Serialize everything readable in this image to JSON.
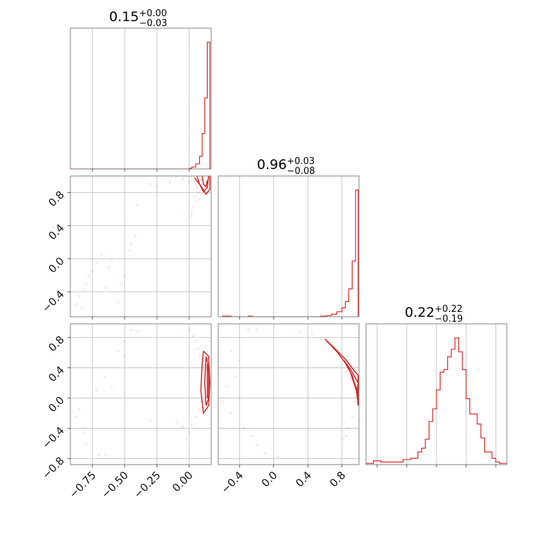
{
  "chart_data": {
    "type": "corner",
    "panels": [
      {
        "id": "hist-0",
        "type": "histogram",
        "title": {
          "value": "0.15",
          "plus": "+0.00",
          "minus": "−0.03"
        },
        "xlim": [
          -0.92,
          0.17
        ],
        "x_grid": [
          -0.75,
          -0.5,
          -0.25,
          0.0
        ],
        "bins": [
          {
            "x0": -0.92,
            "x1": 0.0,
            "value": 0.0
          },
          {
            "x0": 0.0,
            "x1": 0.02,
            "value": 0.005
          },
          {
            "x0": 0.02,
            "x1": 0.05,
            "value": 0.015
          },
          {
            "x0": 0.05,
            "x1": 0.08,
            "value": 0.04
          },
          {
            "x0": 0.08,
            "x1": 0.1,
            "value": 0.1
          },
          {
            "x0": 0.1,
            "x1": 0.12,
            "value": 0.28
          },
          {
            "x0": 0.12,
            "x1": 0.14,
            "value": 0.56
          },
          {
            "x0": 0.14,
            "x1": 0.16,
            "value": 1.0
          },
          {
            "x0": 0.16,
            "x1": 0.17,
            "value": 0.0
          }
        ]
      },
      {
        "id": "hist-1",
        "type": "histogram",
        "title": {
          "value": "0.96",
          "plus": "+0.03",
          "minus": "−0.08"
        },
        "xlim": [
          -0.65,
          1.0
        ],
        "x_grid": [
          -0.4,
          0.0,
          0.4,
          0.8
        ],
        "bins": [
          {
            "x0": -0.6,
            "x1": -0.5,
            "value": 0.005
          },
          {
            "x0": -0.5,
            "x1": -0.3,
            "value": 0.0
          },
          {
            "x0": -0.3,
            "x1": -0.25,
            "value": 0.005
          },
          {
            "x0": -0.25,
            "x1": 0.55,
            "value": 0.0
          },
          {
            "x0": 0.55,
            "x1": 0.62,
            "value": 0.005
          },
          {
            "x0": 0.62,
            "x1": 0.68,
            "value": 0.01
          },
          {
            "x0": 0.68,
            "x1": 0.74,
            "value": 0.02
          },
          {
            "x0": 0.74,
            "x1": 0.8,
            "value": 0.04
          },
          {
            "x0": 0.8,
            "x1": 0.84,
            "value": 0.07
          },
          {
            "x0": 0.84,
            "x1": 0.88,
            "value": 0.12
          },
          {
            "x0": 0.88,
            "x1": 0.92,
            "value": 0.22
          },
          {
            "x0": 0.92,
            "x1": 0.96,
            "value": 0.44
          },
          {
            "x0": 0.96,
            "x1": 0.99,
            "value": 1.0
          },
          {
            "x0": 0.99,
            "x1": 1.0,
            "value": 0.0
          }
        ]
      },
      {
        "id": "hist-2",
        "type": "histogram",
        "title": {
          "value": "0.22",
          "plus": "+0.22",
          "minus": "−0.19"
        },
        "xlim": [
          -0.95,
          0.95
        ],
        "x_grid": [
          -0.8,
          -0.4,
          0.0,
          0.4,
          0.8
        ],
        "bins": [
          {
            "x0": -0.95,
            "x1": -0.85,
            "value": 0.01
          },
          {
            "x0": -0.85,
            "x1": -0.75,
            "value": 0.03
          },
          {
            "x0": -0.75,
            "x1": -0.45,
            "value": 0.02
          },
          {
            "x0": -0.45,
            "x1": -0.35,
            "value": 0.04
          },
          {
            "x0": -0.35,
            "x1": -0.25,
            "value": 0.05
          },
          {
            "x0": -0.25,
            "x1": -0.2,
            "value": 0.1
          },
          {
            "x0": -0.2,
            "x1": -0.15,
            "value": 0.13
          },
          {
            "x0": -0.15,
            "x1": -0.1,
            "value": 0.2
          },
          {
            "x0": -0.1,
            "x1": -0.05,
            "value": 0.34
          },
          {
            "x0": -0.05,
            "x1": 0.0,
            "value": 0.44
          },
          {
            "x0": 0.0,
            "x1": 0.05,
            "value": 0.59
          },
          {
            "x0": 0.05,
            "x1": 0.1,
            "value": 0.73
          },
          {
            "x0": 0.1,
            "x1": 0.15,
            "value": 0.75
          },
          {
            "x0": 0.15,
            "x1": 0.2,
            "value": 0.85
          },
          {
            "x0": 0.2,
            "x1": 0.25,
            "value": 0.91
          },
          {
            "x0": 0.25,
            "x1": 0.3,
            "value": 1.0
          },
          {
            "x0": 0.3,
            "x1": 0.35,
            "value": 0.89
          },
          {
            "x0": 0.35,
            "x1": 0.4,
            "value": 0.75
          },
          {
            "x0": 0.4,
            "x1": 0.45,
            "value": 0.52
          },
          {
            "x0": 0.45,
            "x1": 0.5,
            "value": 0.4
          },
          {
            "x0": 0.5,
            "x1": 0.55,
            "value": 0.4
          },
          {
            "x0": 0.55,
            "x1": 0.6,
            "value": 0.32
          },
          {
            "x0": 0.6,
            "x1": 0.65,
            "value": 0.21
          },
          {
            "x0": 0.65,
            "x1": 0.7,
            "value": 0.1
          },
          {
            "x0": 0.7,
            "x1": 0.75,
            "value": 0.1
          },
          {
            "x0": 0.75,
            "x1": 0.8,
            "value": 0.05
          },
          {
            "x0": 0.8,
            "x1": 0.85,
            "value": 0.02
          },
          {
            "x0": 0.85,
            "x1": 0.95,
            "value": 0.01
          }
        ]
      },
      {
        "id": "scatter-1-0",
        "type": "scatter-contour",
        "xlim": [
          -0.92,
          0.17
        ],
        "ylim": [
          -0.7,
          1.0
        ],
        "x_grid": [
          -0.75,
          -0.5,
          -0.25,
          0.0
        ],
        "y_grid": [
          -0.4,
          0.0,
          0.4,
          0.8
        ],
        "yticks": [
          "−0.4",
          "0.0",
          "0.4",
          "0.8"
        ],
        "points": [
          [
            -0.1,
            0.99
          ],
          [
            -0.05,
            0.96
          ],
          [
            0.0,
            0.93
          ],
          [
            0.02,
            0.98
          ],
          [
            0.05,
            0.9
          ],
          [
            0.06,
            0.85
          ],
          [
            0.07,
            0.8
          ],
          [
            0.04,
            0.75
          ],
          [
            0.06,
            0.7
          ],
          [
            0.03,
            0.62
          ],
          [
            0.02,
            0.55
          ],
          [
            0.01,
            0.52
          ],
          [
            -0.15,
            0.92
          ],
          [
            -0.3,
            0.9
          ],
          [
            -0.4,
            0.65
          ],
          [
            -0.42,
            0.27
          ],
          [
            -0.45,
            0.18
          ],
          [
            -0.46,
            0.1
          ],
          [
            -0.5,
            -0.2
          ],
          [
            -0.52,
            -0.3
          ],
          [
            -0.6,
            0.0
          ],
          [
            -0.62,
            -0.1
          ],
          [
            -0.65,
            -0.35
          ],
          [
            -0.68,
            0.05
          ],
          [
            -0.72,
            -0.05
          ],
          [
            -0.75,
            -0.15
          ],
          [
            -0.78,
            -0.2
          ],
          [
            -0.8,
            -0.3
          ],
          [
            -0.82,
            -0.38
          ],
          [
            -0.85,
            -0.45
          ],
          [
            -0.87,
            -0.55
          ],
          [
            -0.83,
            -0.6
          ],
          [
            -0.25,
            0.87
          ],
          [
            0.08,
            0.72
          ],
          [
            0.09,
            0.95
          ],
          [
            0.11,
            0.88
          ],
          [
            -0.55,
            -0.52
          ]
        ],
        "contours": [
          [
            [
              0.06,
              1.0
            ],
            [
              0.08,
              0.9
            ],
            [
              0.11,
              0.81
            ],
            [
              0.14,
              0.86
            ],
            [
              0.15,
              1.0
            ]
          ],
          [
            [
              0.1,
              1.0
            ],
            [
              0.11,
              0.9
            ],
            [
              0.13,
              0.87
            ],
            [
              0.14,
              0.95
            ]
          ],
          [
            [
              0.04,
              0.98
            ],
            [
              0.09,
              0.88
            ],
            [
              0.13,
              0.78
            ],
            [
              0.16,
              0.84
            ],
            [
              0.16,
              1.0
            ]
          ]
        ]
      },
      {
        "id": "scatter-2-0",
        "type": "scatter-contour",
        "xlim": [
          -0.92,
          0.17
        ],
        "ylim": [
          -0.88,
          0.98
        ],
        "x_grid": [
          -0.75,
          -0.5,
          -0.25,
          0.0
        ],
        "y_grid": [
          -0.8,
          -0.4,
          0.0,
          0.4,
          0.8
        ],
        "xticks": [
          "−0.75",
          "−0.50",
          "−0.25",
          "0.00"
        ],
        "yticks": [
          "−0.8",
          "−0.4",
          "0.0",
          "0.4",
          "0.8"
        ],
        "points": [
          [
            0.0,
            0.9
          ],
          [
            0.03,
            0.82
          ],
          [
            0.05,
            0.75
          ],
          [
            0.07,
            0.65
          ],
          [
            0.08,
            0.55
          ],
          [
            0.1,
            -0.05
          ],
          [
            0.08,
            -0.15
          ],
          [
            0.05,
            -0.25
          ],
          [
            0.02,
            -0.35
          ],
          [
            0.0,
            -0.45
          ],
          [
            -0.02,
            -0.55
          ],
          [
            -0.05,
            -0.38
          ],
          [
            -0.1,
            -0.32
          ],
          [
            -0.45,
            0.9
          ],
          [
            -0.4,
            0.88
          ],
          [
            -0.5,
            0.75
          ],
          [
            -0.55,
            0.62
          ],
          [
            -0.5,
            0.55
          ],
          [
            -0.6,
            0.15
          ],
          [
            -0.65,
            0.28
          ],
          [
            -0.72,
            0.1
          ],
          [
            -0.85,
            -0.15
          ],
          [
            -0.88,
            -0.25
          ],
          [
            -0.82,
            -0.45
          ],
          [
            -0.8,
            -0.6
          ],
          [
            -0.7,
            -0.75
          ],
          [
            -0.65,
            -0.75
          ],
          [
            -0.3,
            -0.3
          ]
        ],
        "contours": [
          [
            [
              0.11,
              0.62
            ],
            [
              0.15,
              0.55
            ],
            [
              0.16,
              0.2
            ],
            [
              0.15,
              -0.1
            ],
            [
              0.11,
              -0.2
            ],
            [
              0.09,
              0.1
            ],
            [
              0.1,
              0.45
            ],
            [
              0.11,
              0.62
            ]
          ],
          [
            [
              0.13,
              0.55
            ],
            [
              0.15,
              0.4
            ],
            [
              0.15,
              0.0
            ],
            [
              0.13,
              -0.1
            ],
            [
              0.12,
              0.2
            ],
            [
              0.13,
              0.55
            ]
          ],
          [
            [
              0.14,
              0.45
            ],
            [
              0.155,
              0.3
            ],
            [
              0.155,
              0.05
            ],
            [
              0.14,
              0.0
            ],
            [
              0.14,
              0.45
            ]
          ]
        ]
      },
      {
        "id": "scatter-2-1",
        "type": "scatter-contour",
        "xlim": [
          -0.65,
          1.0
        ],
        "ylim": [
          -0.88,
          0.98
        ],
        "x_grid": [
          -0.4,
          0.0,
          0.4,
          0.8
        ],
        "y_grid": [
          -0.8,
          -0.4,
          0.0,
          0.4,
          0.8
        ],
        "xticks": [
          "−0.4",
          "0.0",
          "0.4",
          "0.8"
        ],
        "points": [
          [
            -0.3,
            0.9
          ],
          [
            -0.2,
            0.9
          ],
          [
            0.3,
            0.88
          ],
          [
            0.45,
            0.85
          ],
          [
            0.55,
            0.78
          ],
          [
            0.62,
            0.73
          ],
          [
            0.7,
            0.65
          ],
          [
            0.76,
            0.58
          ],
          [
            0.85,
            0.35
          ],
          [
            0.9,
            0.25
          ],
          [
            0.95,
            -0.05
          ],
          [
            0.92,
            -0.25
          ],
          [
            0.88,
            -0.4
          ],
          [
            0.85,
            -0.5
          ],
          [
            0.82,
            -0.55
          ],
          [
            -0.5,
            0.62
          ],
          [
            -0.4,
            0.5
          ],
          [
            -0.55,
            0.15
          ],
          [
            -0.6,
            -0.05
          ],
          [
            -0.5,
            -0.2
          ],
          [
            -0.35,
            -0.4
          ],
          [
            -0.25,
            -0.5
          ],
          [
            -0.2,
            -0.62
          ],
          [
            -0.1,
            -0.73
          ],
          [
            0.05,
            -0.78
          ],
          [
            -0.45,
            0.28
          ]
        ],
        "contours": [
          [
            [
              0.6,
              0.78
            ],
            [
              0.75,
              0.6
            ],
            [
              0.88,
              0.4
            ],
            [
              0.97,
              0.1
            ],
            [
              0.99,
              -0.1
            ],
            [
              0.99,
              0.3
            ],
            [
              0.95,
              0.35
            ],
            [
              0.85,
              0.5
            ],
            [
              0.72,
              0.65
            ],
            [
              0.6,
              0.78
            ]
          ],
          [
            [
              0.82,
              0.5
            ],
            [
              0.92,
              0.3
            ],
            [
              0.98,
              0.05
            ],
            [
              0.99,
              0.2
            ],
            [
              0.9,
              0.38
            ],
            [
              0.82,
              0.5
            ]
          ],
          [
            [
              0.93,
              0.25
            ],
            [
              0.98,
              0.1
            ],
            [
              0.99,
              0.2
            ],
            [
              0.95,
              0.28
            ]
          ]
        ]
      }
    ]
  }
}
